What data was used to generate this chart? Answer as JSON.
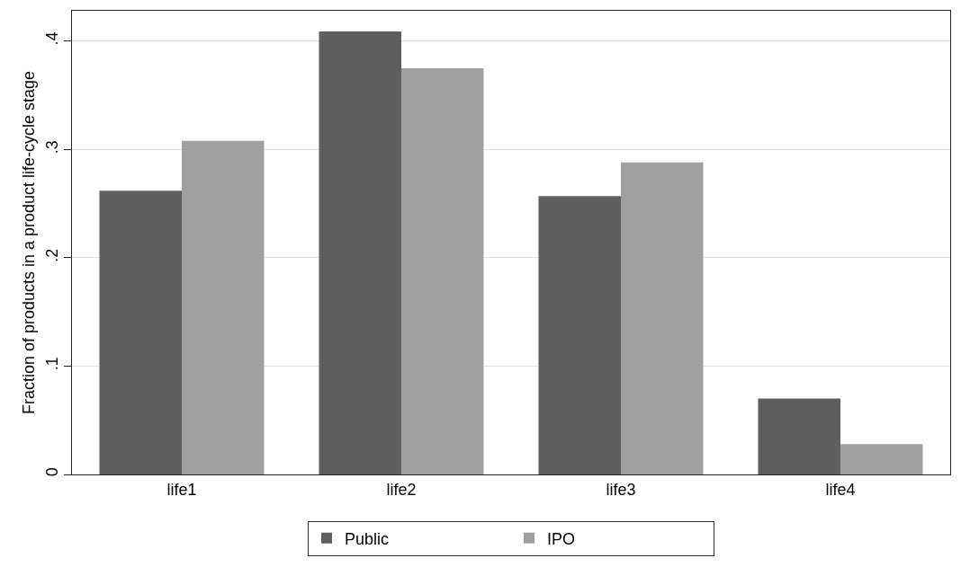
{
  "chart_data": {
    "type": "bar",
    "ylabel": "Fraction of products in a product life-cycle stage",
    "categories": [
      "life1",
      "life2",
      "life3",
      "life4"
    ],
    "series": [
      {
        "name": "Public",
        "color": "#5f5f5f",
        "values": [
          0.262,
          0.409,
          0.257,
          0.07
        ]
      },
      {
        "name": "IPO",
        "color": "#a0a0a0",
        "values": [
          0.308,
          0.375,
          0.288,
          0.028
        ]
      }
    ],
    "ylim": [
      0,
      0.428
    ],
    "yticks": [
      {
        "value": 0,
        "label": "0"
      },
      {
        "value": 0.1,
        "label": ".1"
      },
      {
        "value": 0.2,
        "label": ".2"
      },
      {
        "value": 0.3,
        "label": ".3"
      },
      {
        "value": 0.4,
        "label": ".4"
      }
    ],
    "grid": "y",
    "legend": "bottom"
  }
}
